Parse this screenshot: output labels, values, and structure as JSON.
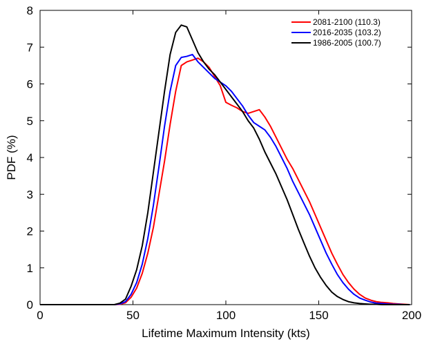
{
  "chart_data": {
    "type": "line",
    "title": "",
    "xlabel": "Lifetime Maximum Intensity  (kts)",
    "ylabel": "PDF (%)",
    "xlim": [
      0,
      200
    ],
    "ylim": [
      0,
      8
    ],
    "xticks": [
      0,
      50,
      100,
      150,
      200
    ],
    "yticks": [
      0,
      1,
      2,
      3,
      4,
      5,
      6,
      7,
      8
    ],
    "grid": false,
    "legend_position": "top-right",
    "series": [
      {
        "name": "2081-2100 (110.3)",
        "color": "#ff0000",
        "x": [
          0,
          5,
          10,
          15,
          20,
          25,
          30,
          35,
          40,
          43,
          46,
          49,
          52,
          55,
          58,
          61,
          64,
          67,
          70,
          73,
          76,
          79,
          82,
          85,
          88,
          91,
          94,
          97,
          100,
          103,
          106,
          109,
          112,
          115,
          118,
          121,
          124,
          127,
          130,
          133,
          136,
          139,
          142,
          145,
          148,
          151,
          154,
          157,
          160,
          163,
          166,
          169,
          172,
          175,
          178,
          181,
          184,
          187,
          190,
          193,
          196,
          199
        ],
        "y": [
          0,
          0,
          0,
          0,
          0,
          0,
          0,
          0,
          0,
          0.01,
          0.05,
          0.2,
          0.45,
          0.85,
          1.4,
          2.1,
          3.0,
          3.9,
          4.9,
          5.8,
          6.5,
          6.6,
          6.65,
          6.7,
          6.6,
          6.45,
          6.2,
          5.95,
          5.5,
          5.42,
          5.35,
          5.25,
          5.2,
          5.25,
          5.3,
          5.1,
          4.85,
          4.55,
          4.25,
          3.95,
          3.7,
          3.4,
          3.1,
          2.8,
          2.45,
          2.1,
          1.75,
          1.4,
          1.1,
          0.82,
          0.6,
          0.42,
          0.28,
          0.18,
          0.12,
          0.08,
          0.06,
          0.05,
          0.03,
          0.02,
          0.01,
          0
        ]
      },
      {
        "name": "2016-2035 (103.2)",
        "color": "#0000ff",
        "x": [
          0,
          5,
          10,
          15,
          20,
          25,
          30,
          35,
          40,
          43,
          46,
          49,
          52,
          55,
          58,
          61,
          64,
          67,
          70,
          73,
          76,
          79,
          82,
          85,
          88,
          91,
          94,
          97,
          100,
          103,
          106,
          109,
          112,
          115,
          118,
          121,
          124,
          127,
          130,
          133,
          136,
          139,
          142,
          145,
          148,
          151,
          154,
          157,
          160,
          163,
          166,
          169,
          172,
          175,
          178,
          181,
          184,
          187,
          190,
          193,
          196,
          199
        ],
        "y": [
          0,
          0,
          0,
          0,
          0,
          0,
          0,
          0,
          0,
          0.02,
          0.08,
          0.28,
          0.6,
          1.1,
          1.8,
          2.7,
          3.75,
          4.85,
          5.8,
          6.5,
          6.72,
          6.75,
          6.8,
          6.6,
          6.45,
          6.3,
          6.15,
          6.05,
          5.95,
          5.8,
          5.6,
          5.4,
          5.15,
          4.95,
          4.85,
          4.75,
          4.55,
          4.3,
          4.0,
          3.7,
          3.35,
          3.05,
          2.75,
          2.45,
          2.1,
          1.75,
          1.4,
          1.1,
          0.82,
          0.6,
          0.42,
          0.28,
          0.18,
          0.12,
          0.07,
          0.04,
          0.03,
          0.02,
          0.01,
          0.01,
          0,
          0
        ]
      },
      {
        "name": "1986-2005 (100.7)",
        "color": "#000000",
        "x": [
          0,
          5,
          10,
          15,
          20,
          25,
          30,
          35,
          40,
          43,
          46,
          49,
          52,
          55,
          58,
          61,
          64,
          67,
          70,
          73,
          76,
          79,
          82,
          85,
          88,
          91,
          94,
          97,
          100,
          103,
          106,
          109,
          112,
          115,
          118,
          121,
          124,
          127,
          130,
          133,
          136,
          139,
          142,
          145,
          148,
          151,
          154,
          157,
          160,
          163,
          166,
          169,
          172,
          175,
          178,
          181,
          184,
          187,
          190,
          193,
          196,
          199
        ],
        "y": [
          0,
          0,
          0,
          0,
          0,
          0,
          0,
          0,
          0,
          0.04,
          0.15,
          0.5,
          0.95,
          1.6,
          2.5,
          3.6,
          4.7,
          5.8,
          6.8,
          7.4,
          7.6,
          7.55,
          7.2,
          6.85,
          6.6,
          6.4,
          6.25,
          6.05,
          5.85,
          5.65,
          5.45,
          5.25,
          5.0,
          4.8,
          4.5,
          4.15,
          3.85,
          3.55,
          3.2,
          2.85,
          2.45,
          2.05,
          1.68,
          1.32,
          1.0,
          0.74,
          0.52,
          0.34,
          0.22,
          0.14,
          0.08,
          0.05,
          0.03,
          0.02,
          0.01,
          0.01,
          0,
          0,
          0,
          0,
          0,
          0
        ]
      }
    ]
  }
}
